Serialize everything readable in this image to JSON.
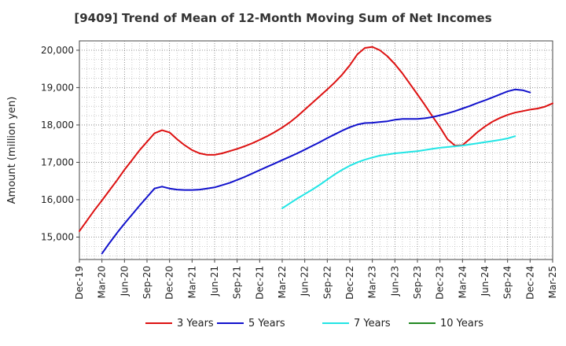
{
  "chart_data": {
    "type": "line",
    "title": "[9409]  Trend of Mean of 12-Month Moving Sum of Net Incomes",
    "ylabel": "Amount (million yen)",
    "xlabel": "",
    "x_ticks": [
      "Dec-19",
      "Mar-20",
      "Jun-20",
      "Sep-20",
      "Dec-20",
      "Mar-21",
      "Jun-21",
      "Sep-21",
      "Dec-21",
      "Mar-22",
      "Jun-22",
      "Sep-22",
      "Dec-22",
      "Mar-23",
      "Jun-23",
      "Sep-23",
      "Dec-23",
      "Mar-24",
      "Jun-24",
      "Sep-24",
      "Dec-24",
      "Mar-25"
    ],
    "y_ticks": [
      15000,
      16000,
      17000,
      18000,
      19000,
      20000
    ],
    "y_tick_labels": [
      "15,000",
      "16,000",
      "17,000",
      "18,000",
      "19,000",
      "20,000"
    ],
    "ylim": [
      14400,
      20250
    ],
    "grid": true,
    "legend_position": "bottom",
    "series": [
      {
        "name": "3 Years",
        "color": "#dd1111",
        "values": [
          15160,
          15440,
          15720,
          15980,
          16250,
          16520,
          16800,
          17060,
          17320,
          17550,
          17780,
          17860,
          17800,
          17620,
          17460,
          17330,
          17240,
          17200,
          17200,
          17240,
          17300,
          17360,
          17430,
          17510,
          17600,
          17700,
          17810,
          17930,
          18070,
          18230,
          18410,
          18590,
          18770,
          18950,
          19140,
          19350,
          19600,
          19890,
          20060,
          20090,
          20000,
          19840,
          19630,
          19380,
          19100,
          18820,
          18530,
          18230,
          17940,
          17620,
          17450,
          17460,
          17630,
          17810,
          17960,
          18090,
          18190,
          18270,
          18330,
          18370,
          18410,
          18440,
          18490,
          18580
        ]
      },
      {
        "name": "5 Years",
        "color": "#1111cc",
        "values": [
          null,
          null,
          null,
          14560,
          14840,
          15110,
          15360,
          15600,
          15840,
          16070,
          16300,
          16350,
          16300,
          16270,
          16260,
          16260,
          16270,
          16300,
          16330,
          16390,
          16450,
          16530,
          16610,
          16700,
          16790,
          16880,
          16970,
          17060,
          17150,
          17240,
          17340,
          17440,
          17540,
          17650,
          17750,
          17850,
          17940,
          18010,
          18050,
          18060,
          18080,
          18100,
          18140,
          18160,
          18160,
          18160,
          18180,
          18210,
          18260,
          18310,
          18370,
          18440,
          18510,
          18590,
          18660,
          18740,
          18820,
          18900,
          18950,
          18930,
          18870
        ]
      },
      {
        "name": "7 Years",
        "color": "#22e5e5",
        "values": [
          null,
          null,
          null,
          null,
          null,
          null,
          null,
          null,
          null,
          null,
          null,
          null,
          null,
          null,
          null,
          null,
          null,
          null,
          null,
          null,
          null,
          null,
          null,
          null,
          null,
          null,
          null,
          15770,
          15900,
          16030,
          16150,
          16270,
          16400,
          16540,
          16680,
          16800,
          16910,
          17000,
          17070,
          17130,
          17180,
          17210,
          17240,
          17260,
          17280,
          17300,
          17330,
          17360,
          17390,
          17410,
          17430,
          17450,
          17480,
          17510,
          17540,
          17570,
          17600,
          17640,
          17700
        ]
      },
      {
        "name": "10 Years",
        "color": "#228822",
        "values": []
      }
    ]
  }
}
